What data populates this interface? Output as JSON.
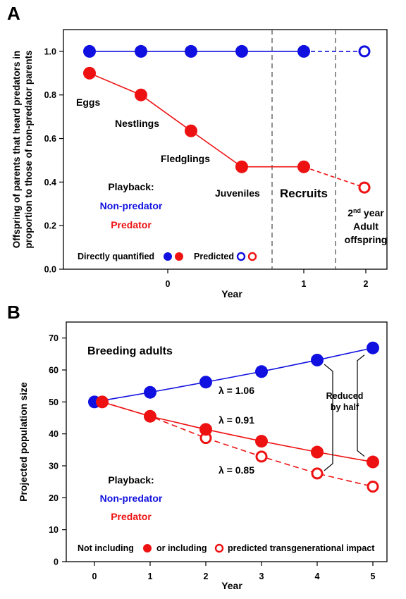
{
  "colors": {
    "blue": "#1010e0",
    "red": "#ee1111",
    "black": "#000000",
    "dash": "#555555"
  },
  "chart_data": [
    {
      "panel_label": "A",
      "type": "line",
      "xlabel": "Year",
      "ylabel_line1": "Offspring of parents that heard predators in",
      "ylabel_line2": "proportion to those of non-predator parents",
      "ylim": [
        0,
        1.1
      ],
      "yticks": [
        "0.0",
        "0.2",
        "0.4",
        "0.6",
        "0.8",
        "1.0"
      ],
      "xticks": [
        "0",
        "1",
        "2"
      ],
      "stages": [
        "Eggs",
        "Nestlings",
        "Fledglings",
        "Juveniles"
      ],
      "section_label": "Recruits",
      "end_label_sup_prefix": "2",
      "end_label_sup": "nd",
      "end_label_line1_rest": " year",
      "end_label_line2": "Adult",
      "end_label_line3": "offspring",
      "series": [
        {
          "name": "Non-predator",
          "measured": [
            1.0,
            1.0,
            1.0,
            1.0,
            1.0
          ],
          "predicted": 1.0
        },
        {
          "name": "Predator",
          "measured": [
            0.9,
            0.8,
            0.635,
            0.47,
            0.47
          ],
          "predicted": 0.375
        }
      ],
      "legend_title": "Playback:",
      "legend_directly": "Directly quantified",
      "legend_predicted": "Predicted"
    },
    {
      "panel_label": "B",
      "type": "line",
      "xlabel": "Year",
      "ylabel": "Projected population size",
      "title": "Breeding adults",
      "x": [
        0,
        1,
        2,
        3,
        4,
        5
      ],
      "ylim": [
        0,
        75
      ],
      "yticks": [
        "0",
        "10",
        "20",
        "30",
        "40",
        "50",
        "60",
        "70"
      ],
      "xticks": [
        "0",
        "1",
        "2",
        "3",
        "4",
        "5"
      ],
      "series": [
        {
          "name": "Non-predator",
          "values": [
            50,
            53.0,
            56.2,
            59.5,
            63.1,
            66.9
          ],
          "annotation": "λ = 1.06"
        },
        {
          "name": "Predator",
          "values": [
            50,
            45.5,
            41.4,
            37.7,
            34.3,
            31.2
          ],
          "annotation": "λ = 0.91"
        },
        {
          "name": "Predator (predicted)",
          "values": [
            50,
            45.5,
            38.7,
            32.9,
            27.6,
            23.5
          ],
          "annotation": "λ = 0.85"
        }
      ],
      "bracket_line1": "Reduced",
      "bracket_line2": "by half",
      "legend_title": "Playback:",
      "legend_nonpred": "Non-predator",
      "legend_pred": "Predator",
      "bottom_not": "Not including",
      "bottom_or": "or including",
      "bottom_pred": "predicted transgenerational impact"
    }
  ]
}
